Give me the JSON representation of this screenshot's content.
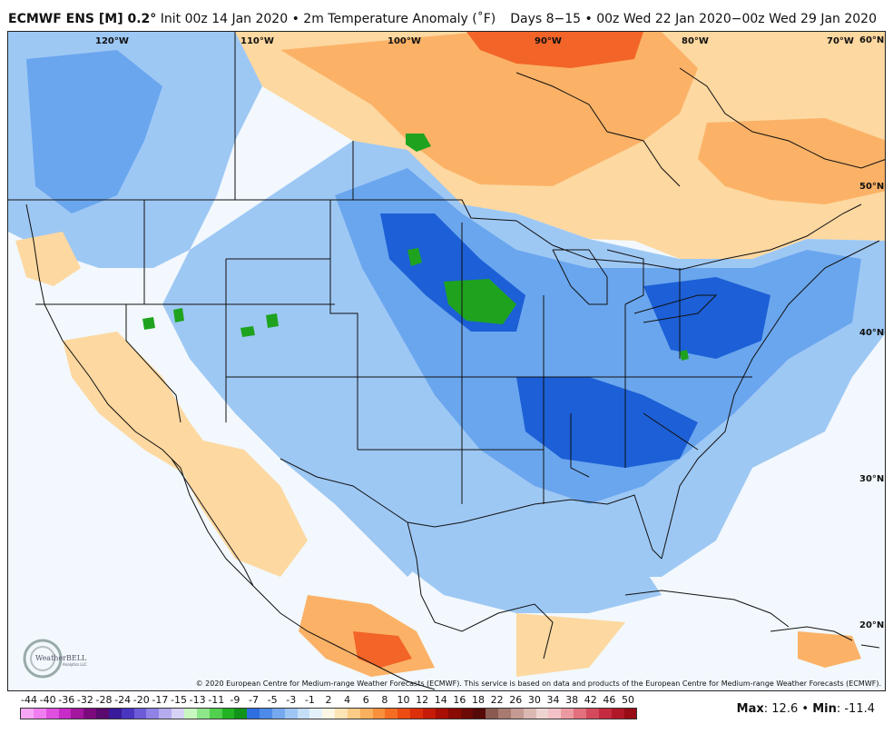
{
  "header": {
    "model": "ECMWF ENS [M] 0.2",
    "degree_mark": "°",
    "init": "Init 00z 14 Jan 2020",
    "bullet": "•",
    "variable": "2m Temperature Anomaly (˚F)",
    "valid_range": "Days 8−15 • 00z Wed 22 Jan 2020−00z Wed 29 Jan 2020"
  },
  "map": {
    "longitude_labels": [
      "120°W",
      "110°W",
      "100°W",
      "90°W",
      "80°W",
      "70°W"
    ],
    "latitude_labels": [
      "60°N",
      "50°N",
      "40°N",
      "30°N",
      "20°N"
    ],
    "colors": {
      "ocean_cold": "#a6eaf5",
      "cold_light": "#9ec8f4",
      "cold_mid": "#6aa6ee",
      "cold_strong": "#3d7fe6",
      "cold_deep": "#1c5fd6",
      "very_cold": "#1fa31f",
      "near_zero": "#f2f8fd",
      "warm_light": "#fdd8a0",
      "warm_mid": "#fbb267",
      "warm_strong": "#f88438",
      "warm_deep": "#f0561c"
    }
  },
  "copyright": "© 2020 European Centre for Medium-range Weather Forecasts (ECMWF). This service is based on data and products of the European Centre for Medium-range Weather Forecasts (ECMWF).",
  "logo": {
    "name": "WeatherBELL",
    "subtitle": "Analytics LLC"
  },
  "legend": {
    "ticks": [
      "-44",
      "-40",
      "-36",
      "-32",
      "-28",
      "-24",
      "-20",
      "-17",
      "-15",
      "-13",
      "-11",
      "-9",
      "-7",
      "-5",
      "-3",
      "-1",
      "2",
      "4",
      "6",
      "8",
      "10",
      "12",
      "14",
      "16",
      "18",
      "22",
      "26",
      "30",
      "34",
      "38",
      "42",
      "46",
      "50"
    ],
    "colors": [
      "#f7a6f7",
      "#f07ef0",
      "#e050e0",
      "#c82bc8",
      "#a3169e",
      "#7d0a7d",
      "#5a0a6e",
      "#3a1a9a",
      "#4a35c0",
      "#6b5bd6",
      "#8f82e4",
      "#b4acef",
      "#d6d2f6",
      "#c8f7c0",
      "#8ee68a",
      "#52cf4e",
      "#22b322",
      "#12931a",
      "#2f6ee0",
      "#4d8ae9",
      "#75a8ef",
      "#9ec6f4",
      "#c4def8",
      "#e4f1fb",
      "#fdf6e4",
      "#fde4b4",
      "#fccb85",
      "#fab05e",
      "#f8903c",
      "#f46d22",
      "#ec4b12",
      "#dc2f0a",
      "#c61b06",
      "#a80e04",
      "#8a0a04",
      "#6e0a06",
      "#550a08",
      "#8a5a52",
      "#a87a72",
      "#c49a92",
      "#dcb8b2",
      "#eed4d0",
      "#f4c2c6",
      "#ec9aa2",
      "#e2707e",
      "#d44a5c",
      "#c42a40",
      "#b01828",
      "#980c16"
    ],
    "max_label": "Max",
    "max_value": "12.6",
    "min_label": "Min",
    "min_value": "-11.4"
  }
}
